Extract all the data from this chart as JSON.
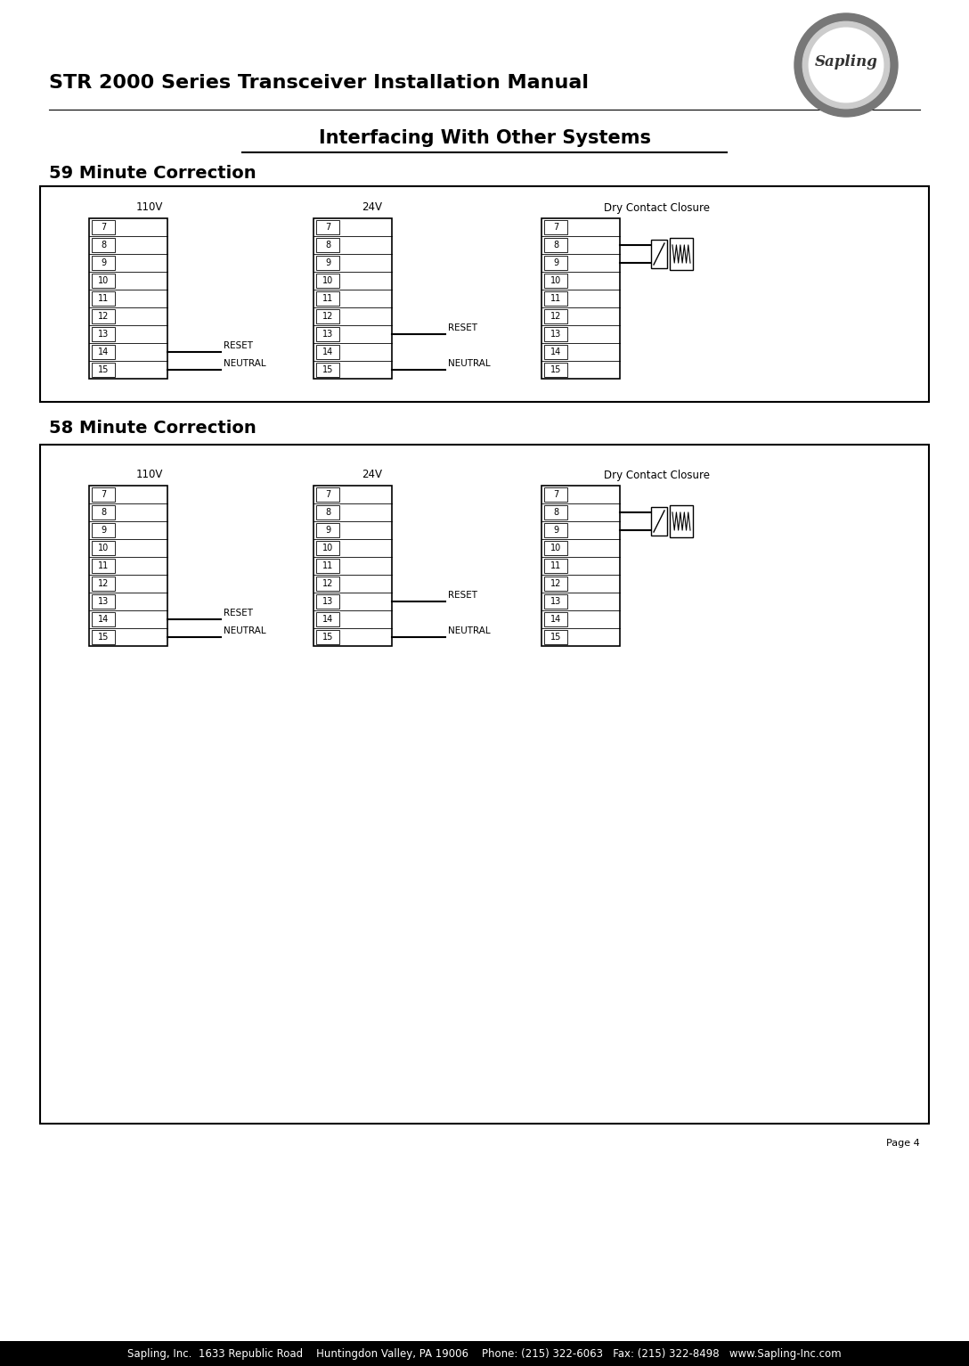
{
  "title": "STR 2000 Series Transceiver Installation Manual",
  "section_title": "Interfacing With Other Systems",
  "subsection1": "59 Minute Correction",
  "subsection2": "58 Minute Correction",
  "page_number": "Page 4",
  "footer_text": "Sapling, Inc.  1633 Republic Road    Huntingdon Valley, PA 19006    Phone: (215) 322-6063   Fax: (215) 322-8498   www.Sapling-Inc.com",
  "terminal_numbers": [
    "7",
    "8",
    "9",
    "10",
    "11",
    "12",
    "13",
    "14",
    "15"
  ],
  "bg_color": "#ffffff",
  "box_color": "#000000",
  "text_color": "#000000",
  "footer_bg": "#000000",
  "footer_text_color": "#ffffff",
  "label_110v": "110V",
  "label_24v": "24V",
  "label_dry": "Dry Contact Closure",
  "label_reset": "RESET",
  "label_neutral": "NEUTRAL",
  "logo_text": "Sapling"
}
